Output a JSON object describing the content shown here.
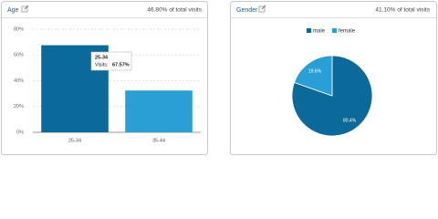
{
  "chart_data": [
    {
      "type": "bar",
      "title": "Age",
      "subtitle": "46.80% of total visits",
      "categories": [
        "25-34",
        "35-44"
      ],
      "values": [
        67.57,
        32.43
      ],
      "value_labels": [
        "67.57%",
        null
      ],
      "tooltip_label": "Visits:",
      "colors": [
        "#0b6a99",
        "#2a9fd6"
      ],
      "ylim": [
        0,
        80
      ],
      "yticks": [
        {
          "value": 0,
          "label": "0%"
        },
        {
          "value": 20,
          "label": "20%"
        },
        {
          "value": 40,
          "label": "40%"
        },
        {
          "value": 60,
          "label": "60%"
        },
        {
          "value": 80,
          "label": "80%"
        }
      ],
      "grid": true
    },
    {
      "type": "pie",
      "title": "Gender",
      "subtitle": "41.10% of total visits",
      "categories": [
        "male",
        "female"
      ],
      "values": [
        80.4,
        19.6
      ],
      "value_labels": [
        "80.4%",
        "19.6%"
      ],
      "colors": [
        "#0b6a99",
        "#2a9fd6"
      ]
    }
  ]
}
